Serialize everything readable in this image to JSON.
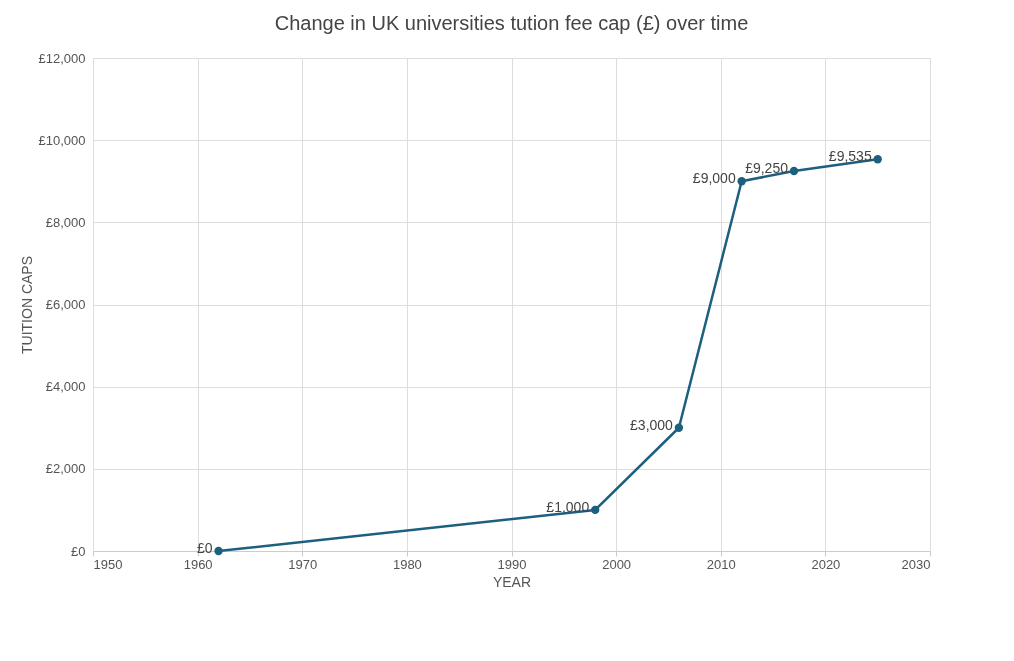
{
  "chart_data": {
    "type": "line",
    "title": "Change in UK universities tution fee cap (£)  over time",
    "xlabel": "YEAR",
    "ylabel": "TUITION CAPS",
    "x": [
      1962,
      1998,
      2006,
      2012,
      2017,
      2025
    ],
    "series": [
      {
        "color": "#1d5f7e",
        "values": [
          0,
          1000,
          3000,
          9000,
          9250,
          9535
        ],
        "value_labels": [
          "£0",
          "£1,000",
          "£3,000",
          "£9,000",
          "£9,250",
          "£9,535"
        ]
      }
    ],
    "xlim": [
      1950,
      2030
    ],
    "xticks": [
      1950,
      1960,
      1970,
      1980,
      1990,
      2000,
      2010,
      2020,
      2030
    ],
    "ylim": [
      0,
      12000
    ],
    "yticks": [
      {
        "value": 0,
        "label": "£0"
      },
      {
        "value": 2000,
        "label": "£2,000"
      },
      {
        "value": 4000,
        "label": "£4,000"
      },
      {
        "value": 6000,
        "label": "£6,000"
      },
      {
        "value": 8000,
        "label": "£8,000"
      },
      {
        "value": 10000,
        "label": "£10,000"
      },
      {
        "value": 12000,
        "label": "£12,000"
      }
    ],
    "grid": true,
    "marker": "circle",
    "line_style": "solid"
  }
}
